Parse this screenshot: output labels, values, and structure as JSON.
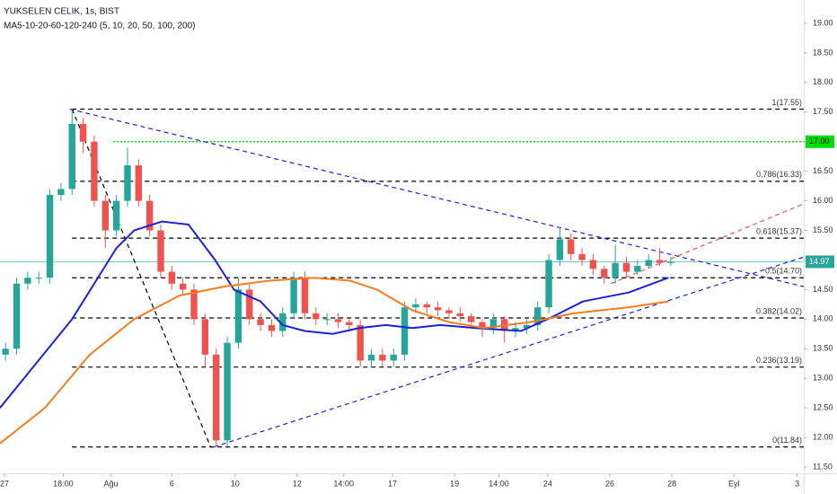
{
  "chart_data": {
    "type": "candlestick",
    "title": "YUKSELEN CELIK, 1s, BIST",
    "subtitle": "MA5-10-20-60-120-240 (5, 10, 20, 50, 100, 200)",
    "up_color": "#26a69a",
    "down_color": "#ef5350",
    "x": [
      0.5,
      1.5,
      2.5,
      3.5,
      4.5,
      5.5,
      6.5,
      7.5,
      8.5,
      9.5,
      10.5,
      11.5,
      12.5,
      13.5,
      14.5,
      15.5,
      16.5,
      17.5,
      18.5,
      19.5,
      20.5,
      21.5,
      22.5,
      23.5,
      24.5,
      25.5,
      26.5,
      27.5,
      28.5,
      29.5,
      30.5,
      31.5,
      32.5,
      33.5,
      34.5,
      35.5,
      36.5,
      37.5,
      38.5,
      39.5,
      40.5,
      41.5,
      42.5,
      43.5,
      44.5,
      45.5,
      46.5,
      47.5,
      48.5,
      49.5,
      50.5,
      51.5,
      52.5,
      53.5,
      54.5,
      55.5,
      56.5,
      57.5,
      58.5,
      59.5,
      60.5
    ],
    "open": [
      13.4,
      13.5,
      14.6,
      14.7,
      14.7,
      16.1,
      16.2,
      17.3,
      17.0,
      16.0,
      15.5,
      16.0,
      16.6,
      16.0,
      15.5,
      14.8,
      14.6,
      14.5,
      14.0,
      13.4,
      11.95,
      13.6,
      14.5,
      14.0,
      13.9,
      13.8,
      14.1,
      14.7,
      14.1,
      14.0,
      14.0,
      13.95,
      13.9,
      13.3,
      13.4,
      13.3,
      13.4,
      14.2,
      14.25,
      14.2,
      14.15,
      14.1,
      14.05,
      13.95,
      13.85,
      14.0,
      13.8,
      13.85,
      13.9,
      14.2,
      15.0,
      15.35,
      15.1,
      15.0,
      14.85,
      14.7,
      14.95,
      14.8,
      14.9,
      15.0,
      14.95
    ],
    "high": [
      13.6,
      14.7,
      14.8,
      14.8,
      16.2,
      16.3,
      17.55,
      17.4,
      17.1,
      16.1,
      16.1,
      16.9,
      16.7,
      16.1,
      15.6,
      14.9,
      14.7,
      14.6,
      14.1,
      13.5,
      13.7,
      14.7,
      14.6,
      14.1,
      14.0,
      14.2,
      14.8,
      14.8,
      14.2,
      14.1,
      14.1,
      14.0,
      14.0,
      13.5,
      13.5,
      13.5,
      14.3,
      14.35,
      14.3,
      14.3,
      14.2,
      14.2,
      14.1,
      14.0,
      14.1,
      14.05,
      13.95,
      14.0,
      14.3,
      15.1,
      15.55,
      15.45,
      15.2,
      15.1,
      14.9,
      15.25,
      15.05,
      15.0,
      15.1,
      15.2,
      15.05
    ],
    "low": [
      13.3,
      13.4,
      14.5,
      14.6,
      14.6,
      16.0,
      16.1,
      16.8,
      15.9,
      15.2,
      15.4,
      15.9,
      15.9,
      15.4,
      14.7,
      14.5,
      14.4,
      13.9,
      13.2,
      11.84,
      11.85,
      13.5,
      13.9,
      13.8,
      13.7,
      13.7,
      14.0,
      14.0,
      13.9,
      13.9,
      13.85,
      13.8,
      13.2,
      13.2,
      13.2,
      13.2,
      13.3,
      14.1,
      14.1,
      14.05,
      14.0,
      13.95,
      13.85,
      13.7,
      13.75,
      13.6,
      13.7,
      13.75,
      13.8,
      14.1,
      14.9,
      15.0,
      14.9,
      14.75,
      14.6,
      14.6,
      14.7,
      14.75,
      14.85,
      14.9,
      14.9
    ],
    "close": [
      13.5,
      14.6,
      14.7,
      14.7,
      16.1,
      16.2,
      17.3,
      17.0,
      16.0,
      15.5,
      16.0,
      16.6,
      16.0,
      15.5,
      14.8,
      14.6,
      14.5,
      14.0,
      13.4,
      11.95,
      13.6,
      14.5,
      14.0,
      13.9,
      13.8,
      14.1,
      14.7,
      14.1,
      14.0,
      14.0,
      13.95,
      13.9,
      13.3,
      13.4,
      13.3,
      13.4,
      14.2,
      14.25,
      14.2,
      14.15,
      14.1,
      14.05,
      13.95,
      13.85,
      14.0,
      13.8,
      13.85,
      13.9,
      14.2,
      15.0,
      15.35,
      15.1,
      15.0,
      14.85,
      14.7,
      14.95,
      14.8,
      14.9,
      15.0,
      14.95,
      14.97
    ],
    "series": [
      {
        "color": "#1e22d6",
        "x": [
          0,
          6.5,
          10.5,
          12.1,
          14.6,
          17.0,
          19.4,
          21.1,
          23.5,
          25.5,
          27.5,
          30.0,
          32.4,
          34.8,
          37.2,
          39.7,
          42.9,
          47.0,
          49.4,
          52.6,
          56.7,
          60.3
        ],
        "values": [
          12.5,
          14.0,
          15.2,
          15.5,
          15.65,
          15.6,
          15.0,
          14.5,
          14.3,
          13.9,
          13.8,
          13.75,
          13.85,
          13.9,
          13.85,
          13.9,
          13.85,
          13.8,
          14.0,
          14.3,
          14.45,
          14.7
        ]
      },
      {
        "color": "#f57c1f",
        "x": [
          0,
          4.05,
          8.1,
          12.1,
          16.2,
          20.2,
          24.3,
          28.3,
          31.6,
          34.0,
          37.2,
          40.5,
          43.7,
          47.8,
          51.8,
          56.7,
          60.3
        ],
        "values": [
          11.9,
          12.5,
          13.4,
          14.0,
          14.4,
          14.55,
          14.65,
          14.7,
          14.65,
          14.5,
          14.15,
          13.95,
          13.85,
          13.95,
          14.1,
          14.2,
          14.3
        ]
      }
    ],
    "drawings": [
      {
        "color": "#1e22d6",
        "x": [
          6.3,
          72.5
        ],
        "y": [
          17.55,
          14.55
        ]
      },
      {
        "color": "#1e22d6",
        "x": [
          19.3,
          72.5
        ],
        "y": [
          11.84,
          15.05
        ]
      },
      {
        "color": "#ef5350",
        "x": [
          55.1,
          72.5
        ],
        "y": [
          14.6,
          15.95
        ]
      },
      {
        "color": "#000000",
        "x": [
          6.5,
          19.0
        ],
        "y": [
          17.55,
          11.84
        ]
      }
    ],
    "fib_levels": [
      {
        "value": 17.55,
        "label": "1(17.55)"
      },
      {
        "value": 16.33,
        "label": "0.786(16.33)"
      },
      {
        "value": 15.37,
        "label": "0.618(15.37)"
      },
      {
        "value": 14.7,
        "label": "0.5(14.70)"
      },
      {
        "value": 14.02,
        "label": "0.382(14.02)"
      },
      {
        "value": 13.19,
        "label": "0.236(13.19)"
      },
      {
        "value": 11.84,
        "label": "0(11.84)"
      }
    ],
    "alert_level": {
      "value": 17.0,
      "label": "17.00",
      "color": "#00e000"
    },
    "last_price": {
      "value": 14.97,
      "label": "14.97",
      "color": "#26a69a"
    },
    "xlim": [
      0,
      72.5
    ],
    "ylim": [
      11.5,
      19.0
    ],
    "xticks": [
      {
        "value": 0.4,
        "label": "27"
      },
      {
        "value": 5.7,
        "label": "18:00"
      },
      {
        "value": 10,
        "label": "Ağu"
      },
      {
        "value": 15.5,
        "label": "6"
      },
      {
        "value": 21.2,
        "label": "10"
      },
      {
        "value": 26.8,
        "label": "12"
      },
      {
        "value": 31,
        "label": "14:00"
      },
      {
        "value": 35.4,
        "label": "17"
      },
      {
        "value": 41,
        "label": "19"
      },
      {
        "value": 45,
        "label": "14:00"
      },
      {
        "value": 49.4,
        "label": "24"
      },
      {
        "value": 55,
        "label": "26"
      },
      {
        "value": 60.6,
        "label": "28"
      },
      {
        "value": 66.2,
        "label": "Eyl"
      },
      {
        "value": 71.9,
        "label": "3"
      }
    ],
    "yticks": [
      {
        "value": 11.5,
        "label": "11.50"
      },
      {
        "value": 12,
        "label": "12.00"
      },
      {
        "value": 12.5,
        "label": "12.50"
      },
      {
        "value": 13,
        "label": "13.00"
      },
      {
        "value": 13.5,
        "label": "13.50"
      },
      {
        "value": 14,
        "label": "14.00"
      },
      {
        "value": 14.5,
        "label": "14.50"
      },
      {
        "value": 15,
        "label": "15.00"
      },
      {
        "value": 15.5,
        "label": "15.50"
      },
      {
        "value": 16,
        "label": "16.00"
      },
      {
        "value": 16.5,
        "label": "16.50"
      },
      {
        "value": 17,
        "label": "17.00"
      },
      {
        "value": 17.5,
        "label": "17.50"
      },
      {
        "value": 18,
        "label": "18.00"
      },
      {
        "value": 18.5,
        "label": "18.50"
      },
      {
        "value": 19,
        "label": "19.00"
      }
    ]
  }
}
